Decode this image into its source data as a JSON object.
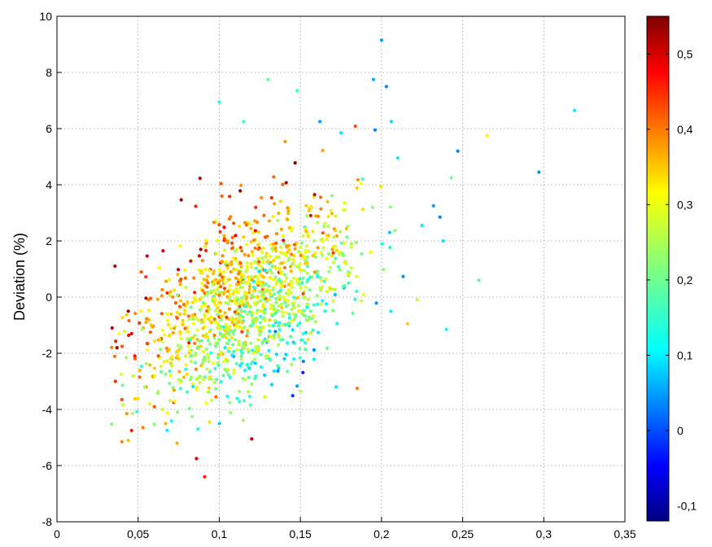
{
  "chart_data": {
    "type": "scatter",
    "title": "",
    "xlabel": "",
    "ylabel": "Deviation  (%)",
    "xlim": [
      0,
      0.35
    ],
    "ylim": [
      -8,
      10
    ],
    "x_ticks": [
      0,
      0.05,
      0.1,
      0.15,
      0.2,
      0.25,
      0.3,
      0.35
    ],
    "x_tick_labels": [
      "0",
      "0,05",
      "0,1",
      "0,15",
      "0,2",
      "0,25",
      "0,3",
      "0,35"
    ],
    "y_ticks": [
      -8,
      -6,
      -4,
      -2,
      0,
      2,
      4,
      6,
      8,
      10
    ],
    "y_tick_labels": [
      "-8",
      "-6",
      "-4",
      "-2",
      "0",
      "2",
      "4",
      "6",
      "8",
      "10"
    ],
    "grid": true,
    "colorbar": {
      "colormap": "jet",
      "clim": [
        -0.12,
        0.55
      ],
      "ticks": [
        -0.1,
        0,
        0.1,
        0.2,
        0.3,
        0.4,
        0.5
      ],
      "tick_labels": [
        "-0,1",
        "0",
        "0,1",
        "0,2",
        "0,3",
        "0,4",
        "0,5"
      ]
    },
    "points": [
      [
        0.2,
        9.15,
        0.07
      ],
      [
        0.319,
        6.65,
        0.12
      ],
      [
        0.297,
        4.45,
        0.06
      ],
      [
        0.265,
        5.75,
        0.3
      ],
      [
        0.195,
        7.75,
        0.08
      ],
      [
        0.203,
        7.5,
        0.05
      ],
      [
        0.196,
        5.95,
        0.05
      ],
      [
        0.206,
        6.25,
        0.11
      ],
      [
        0.13,
        7.75,
        0.2
      ],
      [
        0.148,
        7.35,
        0.17
      ],
      [
        0.1,
        6.95,
        0.16
      ],
      [
        0.115,
        6.25,
        0.17
      ],
      [
        0.162,
        6.25,
        0.07
      ],
      [
        0.175,
        5.85,
        0.12
      ],
      [
        0.247,
        5.2,
        0.05
      ],
      [
        0.21,
        4.95,
        0.12
      ],
      [
        0.243,
        4.25,
        0.21
      ],
      [
        0.232,
        3.25,
        0.07
      ],
      [
        0.225,
        2.55,
        0.12
      ],
      [
        0.236,
        2.85,
        0.05
      ],
      [
        0.238,
        2.0,
        0.11
      ],
      [
        0.205,
        2.3,
        0.1
      ],
      [
        0.26,
        0.6,
        0.18
      ],
      [
        0.222,
        -0.1,
        0.26
      ],
      [
        0.216,
        -0.95,
        0.33
      ],
      [
        0.24,
        -1.15,
        0.13
      ],
      [
        0.185,
        -3.25,
        0.38
      ],
      [
        0.172,
        -3.2,
        0.12
      ],
      [
        0.12,
        -5.05,
        0.51
      ],
      [
        0.091,
        -6.4,
        0.45
      ],
      [
        0.086,
        -5.75,
        0.5
      ],
      [
        0.074,
        -5.2,
        0.35
      ],
      [
        0.04,
        -5.15,
        0.38
      ],
      [
        0.044,
        -5.1,
        0.34
      ],
      [
        0.053,
        -4.65,
        0.38
      ],
      [
        0.046,
        -4.75,
        0.45
      ],
      [
        0.043,
        -4.15,
        0.37
      ],
      [
        0.036,
        -3.0,
        0.44
      ],
      [
        0.04,
        -3.65,
        0.42
      ],
      [
        0.034,
        -1.1,
        0.5
      ],
      [
        0.037,
        -1.8,
        0.52
      ],
      [
        0.044,
        -0.5,
        0.53
      ],
      [
        0.046,
        -1.3,
        0.49
      ],
      [
        0.048,
        -2.1,
        0.46
      ],
      [
        0.051,
        -2.85,
        0.4
      ],
      [
        0.055,
        -3.2,
        0.36
      ],
      [
        0.06,
        -3.9,
        0.41
      ],
      [
        0.067,
        -4.5,
        0.35
      ],
      [
        0.072,
        -3.75,
        0.43
      ],
      [
        0.094,
        -4.45,
        0.32
      ],
      [
        0.098,
        -3.55,
        0.4
      ],
      [
        0.07,
        -2.8,
        0.28
      ],
      [
        0.066,
        -2.3,
        0.31
      ],
      [
        0.08,
        -2.75,
        0.32
      ],
      [
        0.088,
        -3.05,
        0.26
      ],
      [
        0.12,
        -3.1,
        0.22
      ],
      [
        0.15,
        -3.35,
        0.25
      ],
      [
        0.142,
        -2.65,
        0.19
      ],
      [
        0.128,
        -3.55,
        0.27
      ]
    ]
  }
}
